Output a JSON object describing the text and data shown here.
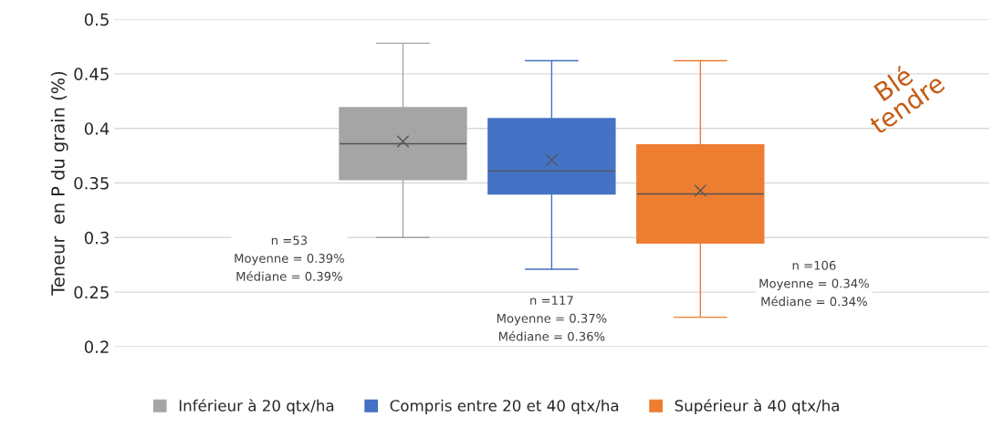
{
  "chart_data": {
    "type": "box",
    "ylabel": "Teneur  en P du grain (%)",
    "categories": [
      null
    ],
    "series": [
      {
        "name": "Inférieur à 20 qtx/ha",
        "color": "#a5a5a5",
        "boxes": [
          {
            "low": 0.3,
            "q1": 0.353,
            "median": 0.386,
            "q3": 0.419,
            "high": 0.478,
            "mean": 0.388
          }
        ]
      },
      {
        "name": "Compris entre 20 et 40 qtx/ha",
        "color": "#4472c4",
        "boxes": [
          {
            "low": 0.271,
            "q1": 0.34,
            "median": 0.361,
            "q3": 0.409,
            "high": 0.462,
            "mean": 0.371
          }
        ]
      },
      {
        "name": "Supérieur à 40 qtx/ha",
        "color": "#ed7d31",
        "boxes": [
          {
            "low": 0.227,
            "q1": 0.295,
            "median": 0.34,
            "q3": 0.385,
            "high": 0.462,
            "mean": 0.343
          }
        ]
      }
    ],
    "ylim": [
      0.2,
      0.5
    ],
    "yticks": [
      0.2,
      0.25,
      0.3,
      0.35,
      0.4,
      0.45,
      0.5
    ],
    "grid": "y",
    "legend": "bottom",
    "annotations": [
      "n =53\nMoyenne = 0.39%\nMédiane = 0.39%",
      "n =117\nMoyenne = 0.37%\nMédiane = 0.36%",
      "n =106\nMoyenne = 0.34%\nMédiane = 0.34%",
      "Blé\ntendre"
    ]
  }
}
